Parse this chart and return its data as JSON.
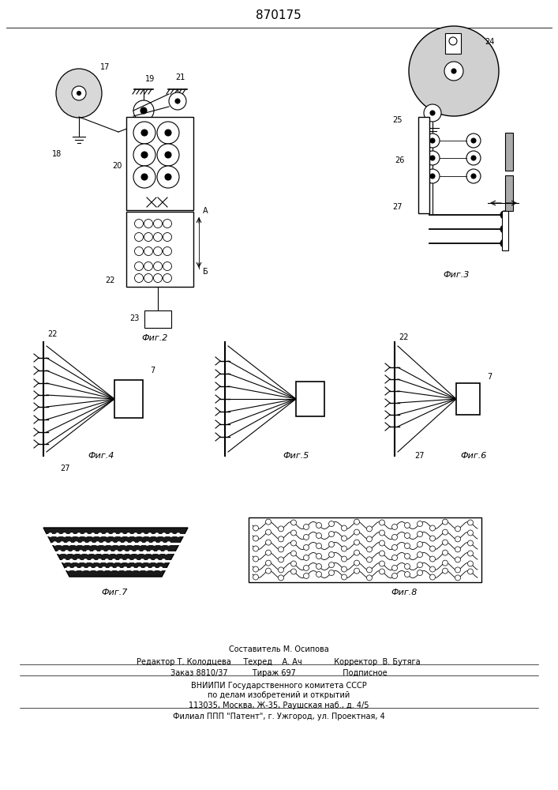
{
  "title": "870175",
  "bg_color": "#ffffff",
  "line_color": "#000000",
  "footer": [
    "Составитель М. Осипова",
    "Редактор Т. Колодцева     Техред    А. Ач             Корректор  В. Бутяга",
    "Заказ 8810/37          Тираж 697                   Подписное",
    "ВНИИПИ Государственного комитета СССР",
    "по делам изобретений и открытий",
    "113035, Москва, Ж-35, Раушская наб., д. 4/5",
    "Филиал ППП \"Патент\", г. Ужгород, ул. Проектная, 4"
  ],
  "fig_captions": [
    "Фиг.2",
    "Фиг.3",
    "Фиг.4",
    "Фиг.5",
    "Фиг.6",
    "Фиг.7",
    "Фиг.8"
  ]
}
